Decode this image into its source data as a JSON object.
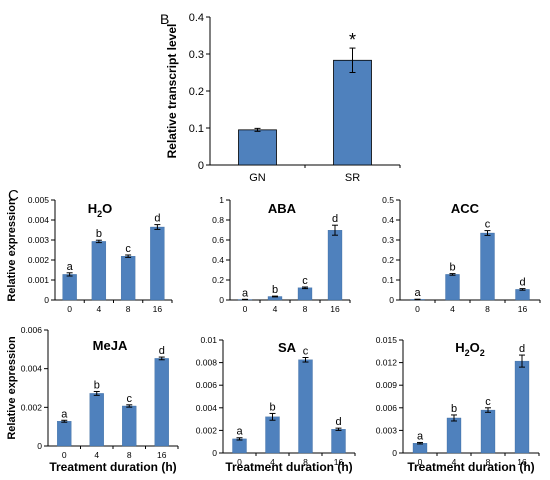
{
  "panels": {
    "B": {
      "label": "B"
    },
    "C": {
      "label": "C"
    }
  },
  "colors": {
    "bar": "#4f81bd",
    "bar_edge": "#2f5f95",
    "axis": "#000000"
  },
  "chart_data": [
    {
      "id": "B",
      "type": "bar",
      "title": "",
      "ylabel": "Relative transcript level",
      "xlabel": "",
      "categories": [
        "GN",
        "SR"
      ],
      "values": [
        0.095,
        0.283
      ],
      "errors": [
        0.004,
        0.033
      ],
      "annotations": [
        "",
        "*"
      ],
      "ylim": [
        0,
        0.4
      ],
      "yticks": [
        "0",
        "0.1",
        "0.2",
        "0.3",
        "0.4"
      ]
    },
    {
      "id": "H2O",
      "type": "bar",
      "title": "H2O",
      "title_main": "H",
      "title_sub": "2",
      "title_tail": "O",
      "ylabel": "Relative expression",
      "xlabel": "",
      "categories": [
        "0",
        "4",
        "8",
        "16"
      ],
      "values": [
        0.00128,
        0.00293,
        0.00219,
        0.00365
      ],
      "errors": [
        8e-05,
        6e-05,
        6e-05,
        0.00012
      ],
      "annotations": [
        "a",
        "b",
        "c",
        "d"
      ],
      "ylim": [
        0,
        0.005
      ],
      "yticks": [
        "0",
        "0.001",
        "0.002",
        "0.003",
        "0.004",
        "0.005"
      ]
    },
    {
      "id": "ABA",
      "type": "bar",
      "title": "ABA",
      "ylabel": "",
      "xlabel": "",
      "categories": [
        "0",
        "4",
        "8",
        "16"
      ],
      "values": [
        0.005,
        0.035,
        0.122,
        0.698
      ],
      "errors": [
        0.002,
        0.004,
        0.008,
        0.05
      ],
      "annotations": [
        "a",
        "b",
        "c",
        "d"
      ],
      "ylim": [
        0,
        1
      ],
      "yticks": [
        "0",
        "0.2",
        "0.4",
        "0.6",
        "0.8",
        "1"
      ]
    },
    {
      "id": "ACC",
      "type": "bar",
      "title": "ACC",
      "ylabel": "",
      "xlabel": "",
      "categories": [
        "0",
        "4",
        "8",
        "16"
      ],
      "values": [
        0.003,
        0.128,
        0.335,
        0.053
      ],
      "errors": [
        0.001,
        0.004,
        0.012,
        0.004
      ],
      "annotations": [
        "a",
        "b",
        "c",
        "d"
      ],
      "ylim": [
        0,
        0.5
      ],
      "yticks": [
        "0",
        "0.1",
        "0.2",
        "0.3",
        "0.4",
        "0.5"
      ]
    },
    {
      "id": "MeJA",
      "type": "bar",
      "title": "MeJA",
      "ylabel": "Relative expression",
      "xlabel": "Treatment duration (h)",
      "categories": [
        "0",
        "4",
        "8",
        "16"
      ],
      "values": [
        0.00128,
        0.00272,
        0.00207,
        0.00453
      ],
      "errors": [
        5e-05,
        0.0001,
        6e-05,
        7e-05
      ],
      "annotations": [
        "a",
        "b",
        "c",
        "d"
      ],
      "ylim": [
        0,
        0.006
      ],
      "yticks": [
        "0",
        "0.002",
        "0.004",
        "0.006"
      ]
    },
    {
      "id": "SA",
      "type": "bar",
      "title": "SA",
      "ylabel": "",
      "xlabel": "Treatment duration (h)",
      "categories": [
        "0",
        "4",
        "8",
        "16"
      ],
      "values": [
        0.00125,
        0.0032,
        0.00825,
        0.0021
      ],
      "errors": [
        0.0001,
        0.0003,
        0.0002,
        0.0001
      ],
      "annotations": [
        "a",
        "b",
        "c",
        "d"
      ],
      "ylim": [
        0,
        0.01
      ],
      "yticks": [
        "0",
        "0.002",
        "0.004",
        "0.006",
        "0.008",
        "0.01"
      ]
    },
    {
      "id": "H2O2",
      "type": "bar",
      "title": "H2O2",
      "title_main": "H",
      "title_sub": "2",
      "title_tail": "O",
      "title_sub2": "2",
      "ylabel": "",
      "xlabel": "Treatment duration (h)",
      "categories": [
        "0",
        "4",
        "8",
        "16"
      ],
      "values": [
        0.0013,
        0.00465,
        0.0057,
        0.0122
      ],
      "errors": [
        0.0001,
        0.0004,
        0.0003,
        0.0008
      ],
      "annotations": [
        "a",
        "b",
        "c",
        "d"
      ],
      "ylim": [
        0,
        0.015
      ],
      "yticks": [
        "0",
        "0.003",
        "0.006",
        "0.009",
        "0.012",
        "0.015"
      ]
    }
  ]
}
